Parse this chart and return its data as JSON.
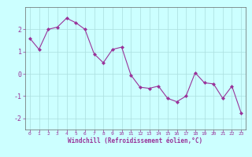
{
  "x": [
    0,
    1,
    2,
    3,
    4,
    5,
    6,
    7,
    8,
    9,
    10,
    11,
    12,
    13,
    14,
    15,
    16,
    17,
    18,
    19,
    20,
    21,
    22,
    23
  ],
  "y": [
    1.6,
    1.1,
    2.0,
    2.1,
    2.5,
    2.3,
    2.0,
    0.9,
    0.5,
    1.1,
    1.2,
    -0.05,
    -0.6,
    -0.65,
    -0.55,
    -1.1,
    -1.25,
    -1.0,
    0.05,
    -0.4,
    -0.45,
    -1.1,
    -0.55,
    -1.75
  ],
  "line_color": "#993399",
  "marker": "D",
  "marker_size": 2.0,
  "bg_color": "#ccffff",
  "grid_color": "#aadddd",
  "xlabel": "Windchill (Refroidissement éolien,°C)",
  "xlabel_color": "#993399",
  "tick_color": "#993399",
  "spine_color": "#666666",
  "ylim": [
    -2.5,
    3.0
  ],
  "yticks": [
    -2,
    -1,
    0,
    1,
    2
  ],
  "xlim": [
    -0.5,
    23.5
  ],
  "xticks": [
    0,
    1,
    2,
    3,
    4,
    5,
    6,
    7,
    8,
    9,
    10,
    11,
    12,
    13,
    14,
    15,
    16,
    17,
    18,
    19,
    20,
    21,
    22,
    23
  ],
  "figsize": [
    3.2,
    2.0
  ],
  "dpi": 100
}
